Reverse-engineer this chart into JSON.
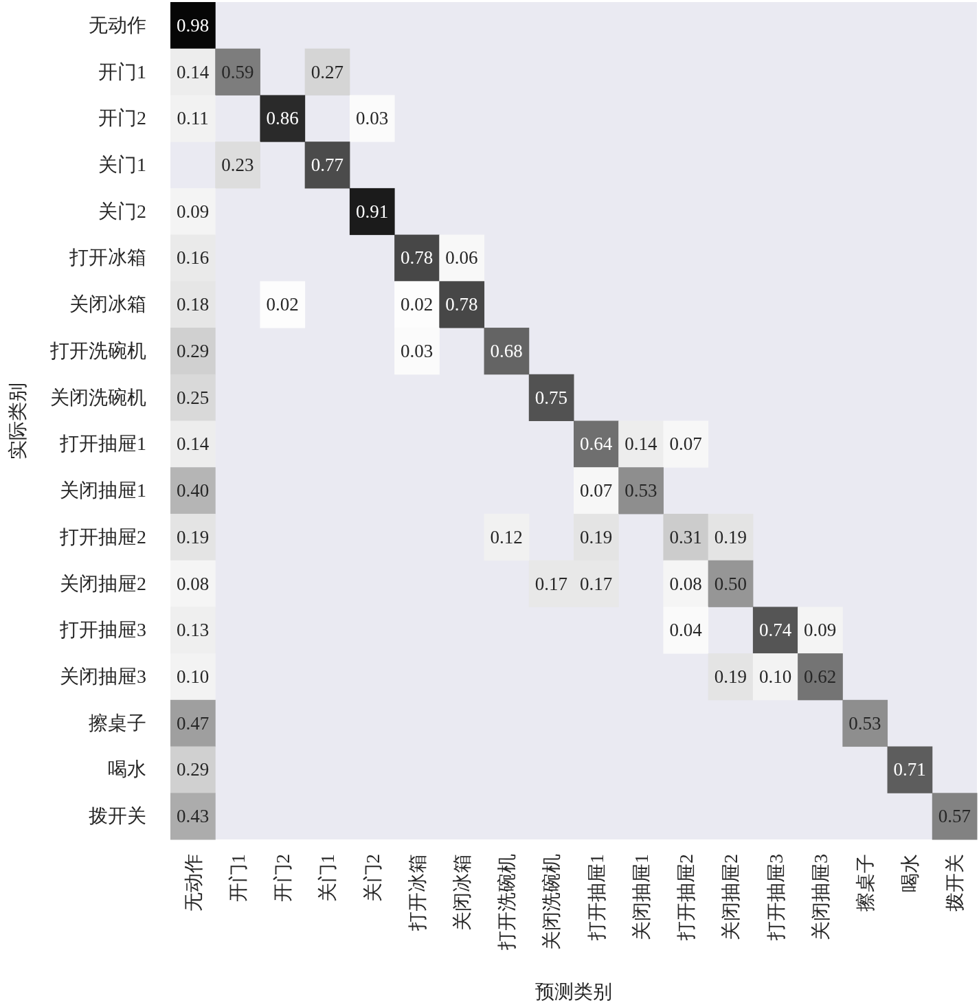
{
  "chart_data": {
    "type": "heatmap",
    "xlabel": "预测类别",
    "ylabel": "实际类别",
    "data_labels": true,
    "categories": [
      "无动作",
      "开门1",
      "开门2",
      "关门1",
      "关门2",
      "打开冰箱",
      "关闭冰箱",
      "打开洗碗机",
      "关闭洗碗机",
      "打开抽屉1",
      "关闭抽屉1",
      "打开抽屉2",
      "关闭抽屉2",
      "打开抽屉3",
      "关闭抽屉3",
      "擦桌子",
      "喝水",
      "拨开关"
    ],
    "y_categories": [
      "无动作",
      "开门1",
      "开门2",
      "关门1",
      "关门2",
      "打开冰箱",
      "关闭冰箱",
      "打开洗碗机",
      "关闭洗碗机",
      "打开抽屉1",
      "关闭抽屉1",
      "打开抽屉2",
      "关闭抽屉2",
      "打开抽屉3",
      "关闭抽屉3",
      "擦桌子",
      "喝水",
      "拨开关"
    ],
    "cells": [
      [
        0.98,
        null,
        null,
        null,
        null,
        null,
        null,
        null,
        null,
        null,
        null,
        null,
        null,
        null,
        null,
        null,
        null,
        null
      ],
      [
        0.14,
        0.59,
        null,
        0.27,
        null,
        null,
        null,
        null,
        null,
        null,
        null,
        null,
        null,
        null,
        null,
        null,
        null,
        null
      ],
      [
        0.11,
        null,
        0.86,
        null,
        0.03,
        null,
        null,
        null,
        null,
        null,
        null,
        null,
        null,
        null,
        null,
        null,
        null,
        null
      ],
      [
        null,
        0.23,
        null,
        0.77,
        null,
        null,
        null,
        null,
        null,
        null,
        null,
        null,
        null,
        null,
        null,
        null,
        null,
        null
      ],
      [
        0.09,
        null,
        null,
        null,
        0.91,
        null,
        null,
        null,
        null,
        null,
        null,
        null,
        null,
        null,
        null,
        null,
        null,
        null
      ],
      [
        0.16,
        null,
        null,
        null,
        null,
        0.78,
        0.06,
        null,
        null,
        null,
        null,
        null,
        null,
        null,
        null,
        null,
        null,
        null
      ],
      [
        0.18,
        null,
        0.02,
        null,
        null,
        0.02,
        0.78,
        null,
        null,
        null,
        null,
        null,
        null,
        null,
        null,
        null,
        null,
        null
      ],
      [
        0.29,
        null,
        null,
        null,
        null,
        0.03,
        null,
        0.68,
        null,
        null,
        null,
        null,
        null,
        null,
        null,
        null,
        null,
        null
      ],
      [
        0.25,
        null,
        null,
        null,
        null,
        null,
        null,
        null,
        0.75,
        null,
        null,
        null,
        null,
        null,
        null,
        null,
        null,
        null
      ],
      [
        0.14,
        null,
        null,
        null,
        null,
        null,
        null,
        null,
        null,
        0.64,
        0.14,
        0.07,
        null,
        null,
        null,
        null,
        null,
        null
      ],
      [
        0.4,
        null,
        null,
        null,
        null,
        null,
        null,
        null,
        null,
        0.07,
        0.53,
        null,
        null,
        null,
        null,
        null,
        null,
        null
      ],
      [
        0.19,
        null,
        null,
        null,
        null,
        null,
        null,
        0.12,
        null,
        0.19,
        null,
        0.31,
        0.19,
        null,
        null,
        null,
        null,
        null
      ],
      [
        0.08,
        null,
        null,
        null,
        null,
        null,
        null,
        null,
        0.17,
        0.17,
        null,
        0.08,
        0.5,
        null,
        null,
        null,
        null,
        null
      ],
      [
        0.13,
        null,
        null,
        null,
        null,
        null,
        null,
        null,
        null,
        null,
        null,
        0.04,
        null,
        0.74,
        0.09,
        null,
        null,
        null
      ],
      [
        0.1,
        null,
        null,
        null,
        null,
        null,
        null,
        null,
        null,
        null,
        null,
        null,
        0.19,
        0.1,
        0.62,
        null,
        null,
        null
      ],
      [
        0.47,
        null,
        null,
        null,
        null,
        null,
        null,
        null,
        null,
        null,
        null,
        null,
        null,
        null,
        null,
        0.53,
        null,
        null
      ],
      [
        0.29,
        null,
        null,
        null,
        null,
        null,
        null,
        null,
        null,
        null,
        null,
        null,
        null,
        null,
        null,
        null,
        0.71,
        null
      ],
      [
        0.43,
        null,
        null,
        null,
        null,
        null,
        null,
        null,
        null,
        null,
        null,
        null,
        null,
        null,
        null,
        null,
        null,
        0.57
      ]
    ],
    "cell_labels": [
      [
        "0.98",
        null,
        null,
        null,
        null,
        null,
        null,
        null,
        null,
        null,
        null,
        null,
        null,
        null,
        null,
        null,
        null,
        null
      ],
      [
        "0.14",
        "0.59",
        null,
        "0.27",
        null,
        null,
        null,
        null,
        null,
        null,
        null,
        null,
        null,
        null,
        null,
        null,
        null,
        null
      ],
      [
        "0.11",
        null,
        "0.86",
        null,
        "0.03",
        null,
        null,
        null,
        null,
        null,
        null,
        null,
        null,
        null,
        null,
        null,
        null,
        null
      ],
      [
        null,
        "0.23",
        null,
        "0.77",
        null,
        null,
        null,
        null,
        null,
        null,
        null,
        null,
        null,
        null,
        null,
        null,
        null,
        null
      ],
      [
        "0.09",
        null,
        null,
        null,
        "0.91",
        null,
        null,
        null,
        null,
        null,
        null,
        null,
        null,
        null,
        null,
        null,
        null,
        null
      ],
      [
        "0.16",
        null,
        null,
        null,
        null,
        "0.78",
        "0.06",
        null,
        null,
        null,
        null,
        null,
        null,
        null,
        null,
        null,
        null,
        null
      ],
      [
        "0.18",
        null,
        "0.02",
        null,
        null,
        "0.02",
        "0.78",
        null,
        null,
        null,
        null,
        null,
        null,
        null,
        null,
        null,
        null,
        null
      ],
      [
        "0.29",
        null,
        null,
        null,
        null,
        "0.03",
        null,
        "0.68",
        null,
        null,
        null,
        null,
        null,
        null,
        null,
        null,
        null,
        null
      ],
      [
        "0.25",
        null,
        null,
        null,
        null,
        null,
        null,
        null,
        "0.75",
        null,
        null,
        null,
        null,
        null,
        null,
        null,
        null,
        null
      ],
      [
        "0.14",
        null,
        null,
        null,
        null,
        null,
        null,
        null,
        null,
        "0.64",
        "0.14",
        "0.07",
        null,
        null,
        null,
        null,
        null,
        null
      ],
      [
        "0.40",
        null,
        null,
        null,
        null,
        null,
        null,
        null,
        null,
        "0.07",
        "0.53",
        null,
        null,
        null,
        null,
        null,
        null,
        null
      ],
      [
        "0.19",
        null,
        null,
        null,
        null,
        null,
        null,
        "0.12",
        null,
        "0.19",
        null,
        "0.31",
        "0.19",
        null,
        null,
        null,
        null,
        null
      ],
      [
        "0.08",
        null,
        null,
        null,
        null,
        null,
        null,
        null,
        "0.17",
        "0.17",
        null,
        "0.08",
        "0.50",
        null,
        null,
        null,
        null,
        null
      ],
      [
        "0.13",
        null,
        null,
        null,
        null,
        null,
        null,
        null,
        null,
        null,
        null,
        "0.04",
        null,
        "0.74",
        "0.09",
        null,
        null,
        null
      ],
      [
        "0.10",
        null,
        null,
        null,
        null,
        null,
        null,
        null,
        null,
        null,
        null,
        null,
        "0.19",
        "0.10",
        "0.62",
        null,
        null,
        null
      ],
      [
        "0.47",
        null,
        null,
        null,
        null,
        null,
        null,
        null,
        null,
        null,
        null,
        null,
        null,
        null,
        null,
        "0.53",
        null,
        null
      ],
      [
        "0.29",
        null,
        null,
        null,
        null,
        null,
        null,
        null,
        null,
        null,
        null,
        null,
        null,
        null,
        null,
        null,
        "0.71",
        null
      ],
      [
        "0.43",
        null,
        null,
        null,
        null,
        null,
        null,
        null,
        null,
        null,
        null,
        null,
        null,
        null,
        null,
        null,
        null,
        "0.57"
      ]
    ]
  }
}
